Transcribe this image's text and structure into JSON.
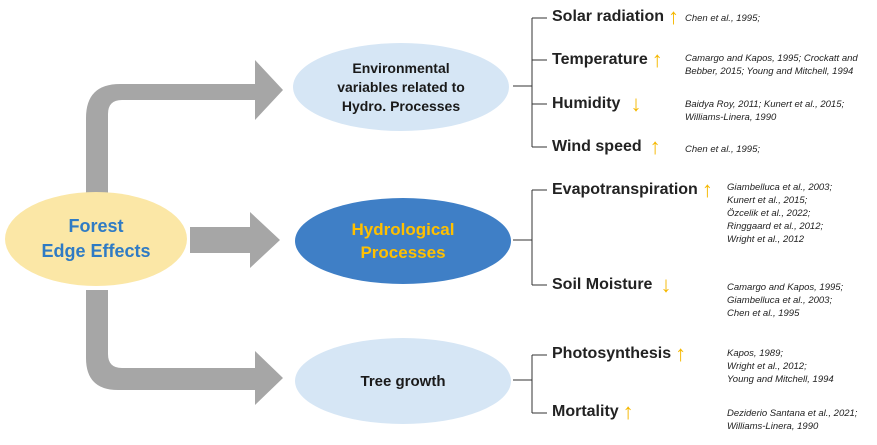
{
  "colors": {
    "center_fill": "#fbe7a6",
    "center_text": "#2f7bc4",
    "env_fill": "#d6e6f5",
    "hydro_fill": "#3f7fc6",
    "hydro_text": "#ffc000",
    "tree_fill": "#d6e6f5",
    "node_text": "#1a1a1a",
    "connector": "#a6a6a6",
    "up_arrow": "#f5b800",
    "down_arrow": "#f5b800",
    "bracket": "#333333"
  },
  "center": {
    "line1": "Forest",
    "line2": "Edge Effects"
  },
  "nodes": {
    "env": {
      "line1": "Environmental",
      "line2": "variables related to",
      "line3": "Hydro.  Processes"
    },
    "hydro": {
      "line1": "Hydrological",
      "line2": "Processes"
    },
    "tree": {
      "line1": "Tree growth"
    }
  },
  "variables": {
    "solar": {
      "label": "Solar radiation",
      "trend": "↑",
      "trend_icon": "up-arrow-icon",
      "refs": [
        "Chen et al., 1995;"
      ]
    },
    "temperature": {
      "label": "Temperature",
      "trend": "↑",
      "trend_icon": "up-arrow-icon",
      "refs": [
        "Camargo and Kapos, 1995; Crockatt and",
        "Bebber, 2015; Young and Mitchell, 1994"
      ]
    },
    "humidity": {
      "label": "Humidity",
      "trend": "↓",
      "trend_icon": "down-arrow-icon",
      "refs": [
        "Baidya Roy, 2011; Kunert et al., 2015;",
        "Williams-Linera, 1990"
      ]
    },
    "wind": {
      "label": "Wind speed",
      "trend": "↑",
      "trend_icon": "up-arrow-icon",
      "refs": [
        "Chen et al., 1995;"
      ]
    },
    "evapo": {
      "label": "Evapotranspiration",
      "trend": "↑",
      "trend_icon": "up-arrow-icon",
      "refs": [
        "Giambelluca et al., 2003;",
        "Kunert et al., 2015;",
        "Özcelik et al., 2022;",
        "Ringgaard et al., 2012;",
        "Wright et al., 2012"
      ]
    },
    "soil": {
      "label": "Soil Moisture",
      "trend": "↓",
      "trend_icon": "down-arrow-icon",
      "refs": [
        "Camargo and Kapos, 1995;",
        "Giambelluca et al., 2003;",
        "Chen et al., 1995"
      ]
    },
    "photo": {
      "label": "Photosynthesis",
      "trend": "↑",
      "trend_icon": "up-arrow-icon",
      "refs": [
        "Kapos, 1989;",
        "Wright et al., 2012;",
        "Young and Mitchell, 1994"
      ]
    },
    "mortality": {
      "label": "Mortality",
      "trend": "↑",
      "trend_icon": "up-arrow-icon",
      "refs": [
        "Deziderio Santana et al., 2021;",
        "Williams-Linera, 1990"
      ]
    }
  }
}
